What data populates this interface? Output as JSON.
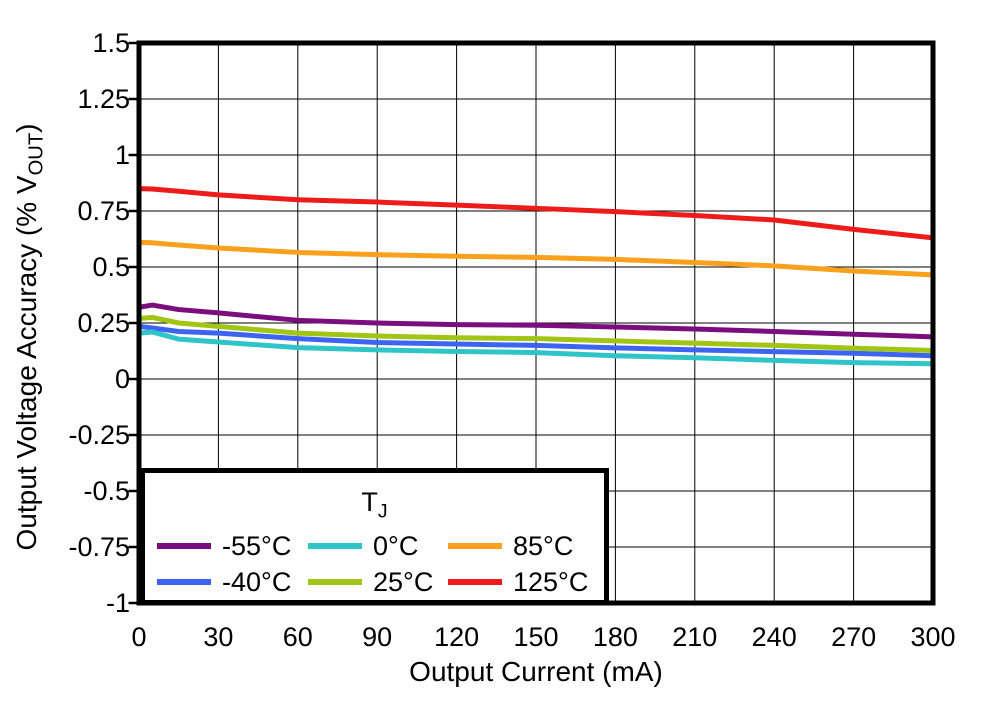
{
  "figure": {
    "background": "#ffffff",
    "frame_color": "#000000",
    "grid_color": "#000000"
  },
  "chart_data": {
    "type": "line",
    "title": "",
    "xlabel": "Output Current (mA)",
    "ylabel_pre": "Output Voltage Accuracy (% V",
    "ylabel_sub": "OUT",
    "ylabel_post": ")",
    "xlim": [
      0,
      300
    ],
    "ylim": [
      -1,
      1.5
    ],
    "grid": true,
    "xticks": [
      0,
      30,
      60,
      90,
      120,
      150,
      180,
      210,
      240,
      270,
      300
    ],
    "yticks": [
      1.5,
      1.25,
      1,
      0.75,
      0.5,
      0.25,
      0,
      -0.25,
      -0.5,
      -0.75,
      -1
    ],
    "xtick_labels": [
      "0",
      "30",
      "60",
      "90",
      "120",
      "150",
      "180",
      "210",
      "240",
      "270",
      "300"
    ],
    "ytick_labels": [
      "1.5",
      "1.25",
      "1",
      "0.75",
      "0.5",
      "0.25",
      "0",
      "-0.25",
      "-0.5",
      "-0.75",
      "-1"
    ],
    "legend": {
      "title_main": "T",
      "title_sub": "J",
      "position": "lower-left"
    },
    "x": [
      0,
      5,
      15,
      30,
      60,
      90,
      120,
      150,
      180,
      210,
      240,
      270,
      300
    ],
    "series": [
      {
        "name": "-55°C",
        "color": "#7B0D7E",
        "values": [
          0.32,
          0.33,
          0.31,
          0.295,
          0.262,
          0.25,
          0.243,
          0.24,
          0.232,
          0.223,
          0.212,
          0.2,
          0.188
        ]
      },
      {
        "name": "-40°C",
        "color": "#3D64F0",
        "values": [
          0.235,
          0.228,
          0.212,
          0.205,
          0.18,
          0.163,
          0.156,
          0.15,
          0.139,
          0.13,
          0.122,
          0.115,
          0.104
        ]
      },
      {
        "name": "0°C",
        "color": "#2FC5C8",
        "values": [
          0.205,
          0.21,
          0.178,
          0.165,
          0.14,
          0.13,
          0.123,
          0.118,
          0.104,
          0.095,
          0.083,
          0.073,
          0.068
        ]
      },
      {
        "name": "25°C",
        "color": "#A0C515",
        "values": [
          0.27,
          0.275,
          0.25,
          0.235,
          0.205,
          0.192,
          0.184,
          0.18,
          0.17,
          0.16,
          0.15,
          0.138,
          0.127
        ]
      },
      {
        "name": "85°C",
        "color": "#F9A11C",
        "values": [
          0.61,
          0.608,
          0.598,
          0.585,
          0.565,
          0.555,
          0.548,
          0.543,
          0.534,
          0.52,
          0.505,
          0.482,
          0.465
        ]
      },
      {
        "name": "125°C",
        "color": "#EE1B1B",
        "values": [
          0.85,
          0.848,
          0.838,
          0.822,
          0.8,
          0.79,
          0.776,
          0.762,
          0.747,
          0.73,
          0.71,
          0.668,
          0.63
        ]
      }
    ]
  }
}
